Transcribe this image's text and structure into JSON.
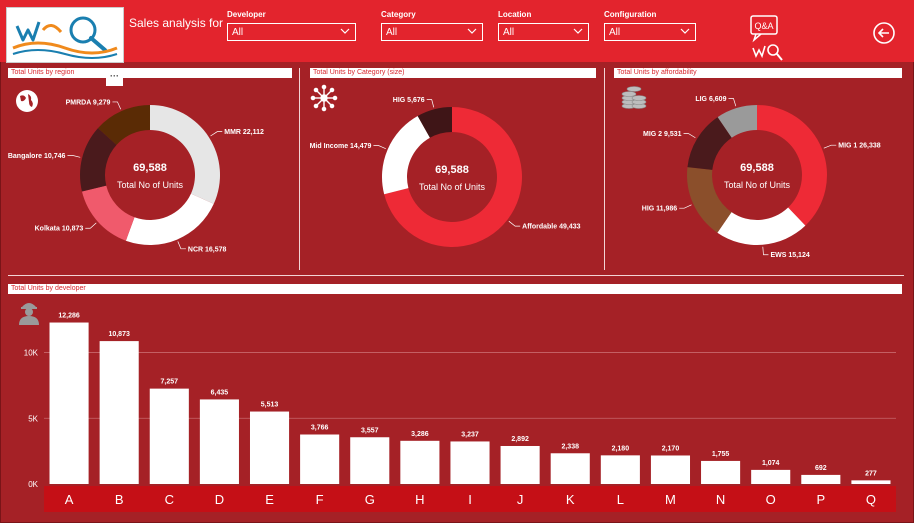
{
  "header": {
    "title": "Sales analysis for",
    "filters": [
      {
        "label": "Developer",
        "value": "All"
      },
      {
        "label": "Category",
        "value": "All"
      },
      {
        "label": "Location",
        "value": "All"
      },
      {
        "label": "Configuration",
        "value": "All"
      }
    ],
    "qa_label": "Q&A"
  },
  "colors": {
    "background": "#a52126",
    "header": "#e3242d",
    "accent_red": "#ee2a36",
    "bar": "#ffffff",
    "axis_band": "#c50f16"
  },
  "icons": {
    "region": "globe-icon",
    "category": "network-icon",
    "affordability": "coins-icon",
    "developer": "worker-icon",
    "back": "back-arrow-icon",
    "qa": "qa-search-icon"
  },
  "chart_data": [
    {
      "type": "pie",
      "variant": "donut",
      "title": "Total Units by region",
      "center_value": "69,588",
      "center_label": "Total No of Units",
      "slices": [
        {
          "label": "MMR",
          "value": 22112,
          "value_label": "22,112",
          "color": "#e6e6e6"
        },
        {
          "label": "NCR",
          "value": 16578,
          "value_label": "16,578",
          "color": "#ffffff"
        },
        {
          "label": "Kolkata",
          "value": 10873,
          "value_label": "10,873",
          "color": "#f05a6c"
        },
        {
          "label": "Bangalore",
          "value": 10746,
          "value_label": "10,746",
          "color": "#4a1a1c"
        },
        {
          "label": "PMRDA",
          "value": 9279,
          "value_label": "9,279",
          "color": "#5a2b05"
        }
      ]
    },
    {
      "type": "pie",
      "variant": "donut",
      "title": "Total Units by Category (size)",
      "center_value": "69,588",
      "center_label": "Total No of Units",
      "slices": [
        {
          "label": "Affordable",
          "value": 49433,
          "value_label": "49,433",
          "color": "#ee2a36"
        },
        {
          "label": "Mid Income",
          "value": 14479,
          "value_label": "14,479",
          "color": "#ffffff"
        },
        {
          "label": "HIG",
          "value": 5676,
          "value_label": "5,676",
          "color": "#3f1517"
        }
      ]
    },
    {
      "type": "pie",
      "variant": "donut",
      "title": "Total Units by affordability",
      "center_value": "69,588",
      "center_label": "Total No of Units",
      "slices": [
        {
          "label": "MIG 1",
          "value": 26338,
          "value_label": "26,338",
          "color": "#ee2a36"
        },
        {
          "label": "EWS",
          "value": 15124,
          "value_label": "15,124",
          "color": "#ffffff"
        },
        {
          "label": "HIG",
          "value": 11986,
          "value_label": "11,986",
          "color": "#8b4f2b"
        },
        {
          "label": "MIG 2",
          "value": 9531,
          "value_label": "9,531",
          "color": "#4a1a1c"
        },
        {
          "label": "LIG",
          "value": 6609,
          "value_label": "6,609",
          "color": "#9a9a9a"
        }
      ]
    },
    {
      "type": "bar",
      "title": "Total Units by developer",
      "categories": [
        "A",
        "B",
        "C",
        "D",
        "E",
        "F",
        "G",
        "H",
        "I",
        "J",
        "K",
        "L",
        "M",
        "N",
        "O",
        "P",
        "Q"
      ],
      "values": [
        12286,
        10873,
        7257,
        6435,
        5513,
        3766,
        3557,
        3286,
        3237,
        2892,
        2338,
        2180,
        2170,
        1755,
        1074,
        692,
        277
      ],
      "value_labels": [
        "12,286",
        "10,873",
        "7,257",
        "6,435",
        "5,513",
        "3,766",
        "3,557",
        "3,286",
        "3,237",
        "2,892",
        "2,338",
        "2,180",
        "2,170",
        "1,755",
        "1,074",
        "692",
        "277"
      ],
      "ylim": [
        0,
        14000
      ],
      "yticks": [
        0,
        5000,
        10000
      ],
      "ytick_labels": [
        "0K",
        "5K",
        "10K"
      ],
      "grid": true
    }
  ]
}
